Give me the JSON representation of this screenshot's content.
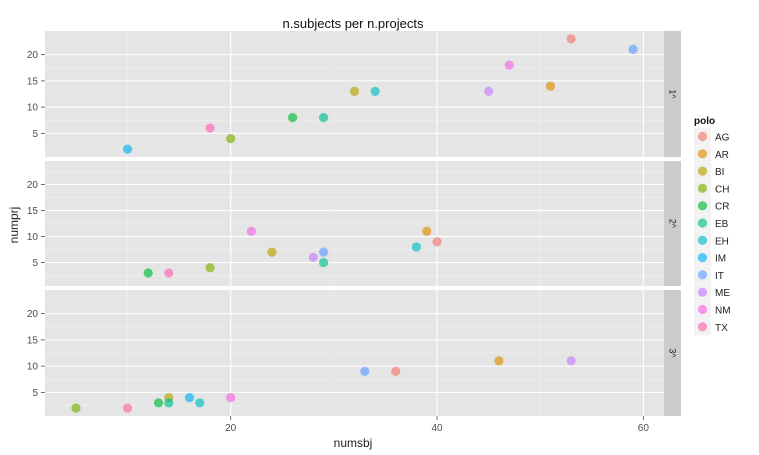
{
  "chart_data": {
    "type": "scatter",
    "title": "n.subjects per n.projects",
    "xlabel": "numsbj",
    "ylabel": "numprj",
    "xlim": [
      2,
      62
    ],
    "ylim": [
      0.5,
      24.5
    ],
    "x_ticks": [
      20,
      40,
      60
    ],
    "y_ticks": [
      5,
      10,
      15,
      20
    ],
    "legend": {
      "title": "polo",
      "position": "right",
      "entries": [
        {
          "name": "AG",
          "color": "#F8766D"
        },
        {
          "name": "AR",
          "color": "#DE8C00"
        },
        {
          "name": "BI",
          "color": "#B79F00"
        },
        {
          "name": "CH",
          "color": "#7CAE00"
        },
        {
          "name": "CR",
          "color": "#00BA38"
        },
        {
          "name": "EB",
          "color": "#00C08B"
        },
        {
          "name": "EH",
          "color": "#00BFC4"
        },
        {
          "name": "IM",
          "color": "#00B4F0"
        },
        {
          "name": "IT",
          "color": "#619CFF"
        },
        {
          "name": "ME",
          "color": "#C77CFF"
        },
        {
          "name": "NM",
          "color": "#F564E3"
        },
        {
          "name": "TX",
          "color": "#FF64B0"
        }
      ]
    },
    "facets": [
      {
        "label": "1^",
        "points": [
          {
            "x": 53,
            "y": 23,
            "polo": "AG"
          },
          {
            "x": 59,
            "y": 21,
            "polo": "IT"
          },
          {
            "x": 47,
            "y": 18,
            "polo": "NM"
          },
          {
            "x": 45,
            "y": 13,
            "polo": "ME"
          },
          {
            "x": 51,
            "y": 14,
            "polo": "AR"
          },
          {
            "x": 32,
            "y": 13,
            "polo": "BI"
          },
          {
            "x": 34,
            "y": 13,
            "polo": "EH"
          },
          {
            "x": 26,
            "y": 8,
            "polo": "CR"
          },
          {
            "x": 29,
            "y": 8,
            "polo": "EB"
          },
          {
            "x": 18,
            "y": 6,
            "polo": "TX"
          },
          {
            "x": 20,
            "y": 4,
            "polo": "CH"
          },
          {
            "x": 10,
            "y": 2,
            "polo": "IM"
          }
        ]
      },
      {
        "label": "2^",
        "points": [
          {
            "x": 39,
            "y": 11,
            "polo": "AR"
          },
          {
            "x": 40,
            "y": 9,
            "polo": "AG"
          },
          {
            "x": 38,
            "y": 8,
            "polo": "EH"
          },
          {
            "x": 22,
            "y": 11,
            "polo": "NM"
          },
          {
            "x": 24,
            "y": 7,
            "polo": "BI"
          },
          {
            "x": 28,
            "y": 6,
            "polo": "ME"
          },
          {
            "x": 29,
            "y": 7,
            "polo": "IT"
          },
          {
            "x": 29,
            "y": 5,
            "polo": "EB"
          },
          {
            "x": 12,
            "y": 3,
            "polo": "CR"
          },
          {
            "x": 14,
            "y": 3,
            "polo": "TX"
          },
          {
            "x": 18,
            "y": 4,
            "polo": "CH"
          }
        ]
      },
      {
        "label": "3^",
        "points": [
          {
            "x": 46,
            "y": 11,
            "polo": "AR"
          },
          {
            "x": 53,
            "y": 11,
            "polo": "ME"
          },
          {
            "x": 33,
            "y": 9,
            "polo": "IT"
          },
          {
            "x": 36,
            "y": 9,
            "polo": "AG"
          },
          {
            "x": 5,
            "y": 2,
            "polo": "CH"
          },
          {
            "x": 10,
            "y": 2,
            "polo": "TX"
          },
          {
            "x": 13,
            "y": 3,
            "polo": "CR"
          },
          {
            "x": 14,
            "y": 4,
            "polo": "BI"
          },
          {
            "x": 14,
            "y": 3,
            "polo": "EB"
          },
          {
            "x": 16,
            "y": 4,
            "polo": "IM"
          },
          {
            "x": 17,
            "y": 3,
            "polo": "EH"
          },
          {
            "x": 20,
            "y": 4,
            "polo": "NM"
          }
        ]
      }
    ],
    "grid": true
  }
}
